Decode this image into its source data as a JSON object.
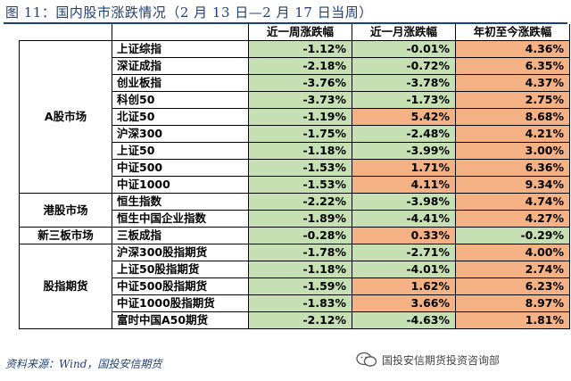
{
  "title": "图 11：国内股市涨跌情况（2 月 13 日—2 月 17 日当周）",
  "header": {
    "col_week": "近一周涨跌幅",
    "col_month": "近一月涨跌幅",
    "col_ytd": "年初至今涨跌幅"
  },
  "groups": [
    {
      "market": "A股市场",
      "rows": [
        {
          "name": "上证综指",
          "week": "-1.12%",
          "month": "-0.01%",
          "ytd": "4.36%",
          "week_color": "g",
          "month_color": "g",
          "ytd_color": "o"
        },
        {
          "name": "深证成指",
          "week": "-2.18%",
          "month": "-0.72%",
          "ytd": "6.35%",
          "week_color": "g",
          "month_color": "g",
          "ytd_color": "o"
        },
        {
          "name": "创业板指",
          "week": "-3.76%",
          "month": "-3.78%",
          "ytd": "4.37%",
          "week_color": "g",
          "month_color": "g",
          "ytd_color": "o"
        },
        {
          "name": "科创50",
          "week": "-3.73%",
          "month": "-1.73%",
          "ytd": "2.75%",
          "week_color": "g",
          "month_color": "g",
          "ytd_color": "o"
        },
        {
          "name": "北证50",
          "week": "-1.19%",
          "month": "5.42%",
          "ytd": "8.68%",
          "week_color": "g",
          "month_color": "o",
          "ytd_color": "o"
        },
        {
          "name": "沪深300",
          "week": "-1.75%",
          "month": "-2.48%",
          "ytd": "4.21%",
          "week_color": "g",
          "month_color": "g",
          "ytd_color": "o"
        },
        {
          "name": "上证50",
          "week": "-1.18%",
          "month": "-3.99%",
          "ytd": "3.00%",
          "week_color": "g",
          "month_color": "g",
          "ytd_color": "o"
        },
        {
          "name": "中证500",
          "week": "-1.53%",
          "month": "1.71%",
          "ytd": "6.36%",
          "week_color": "g",
          "month_color": "o",
          "ytd_color": "o"
        },
        {
          "name": "中证1000",
          "week": "-1.53%",
          "month": "4.11%",
          "ytd": "9.34%",
          "week_color": "g",
          "month_color": "o",
          "ytd_color": "o"
        }
      ]
    },
    {
      "market": "港股市场",
      "rows": [
        {
          "name": "恒生指数",
          "week": "-2.22%",
          "month": "-3.98%",
          "ytd": "4.74%",
          "week_color": "g",
          "month_color": "g",
          "ytd_color": "o"
        },
        {
          "name": "恒生中国企业指数",
          "week": "-1.89%",
          "month": "-4.41%",
          "ytd": "4.27%",
          "week_color": "g",
          "month_color": "g",
          "ytd_color": "o"
        }
      ]
    },
    {
      "market": "新三板市场",
      "rows": [
        {
          "name": "三板成指",
          "week": "-0.28%",
          "month": "0.33%",
          "ytd": "-0.29%",
          "week_color": "g",
          "month_color": "o",
          "ytd_color": "g"
        }
      ]
    },
    {
      "market": "股指期货",
      "rows": [
        {
          "name": "沪深300股指期货",
          "week": "-1.78%",
          "month": "-2.71%",
          "ytd": "4.00%",
          "week_color": "g",
          "month_color": "g",
          "ytd_color": "o"
        },
        {
          "name": "上证50股指期货",
          "week": "-1.18%",
          "month": "-4.01%",
          "ytd": "2.74%",
          "week_color": "g",
          "month_color": "g",
          "ytd_color": "o"
        },
        {
          "name": "中证500股指期货",
          "week": "-1.59%",
          "month": "1.62%",
          "ytd": "6.23%",
          "week_color": "g",
          "month_color": "o",
          "ytd_color": "o"
        },
        {
          "name": "中证1000股指期货",
          "week": "-1.83%",
          "month": "3.66%",
          "ytd": "8.97%",
          "week_color": "g",
          "month_color": "o",
          "ytd_color": "o"
        },
        {
          "name": "富时中国A50期货",
          "week": "-2.12%",
          "month": "-4.63%",
          "ytd": "1.81%",
          "week_color": "g",
          "month_color": "g",
          "ytd_color": "o"
        }
      ]
    }
  ],
  "colors": {
    "positive": "#f4b183",
    "negative": "#c6e0b4",
    "title": "#1f3f7a"
  },
  "source": "资料来源：Wind，国投安信期货",
  "watermark": {
    "text": "国投安信期货投资咨询部",
    "icon": "wechat-icon"
  }
}
